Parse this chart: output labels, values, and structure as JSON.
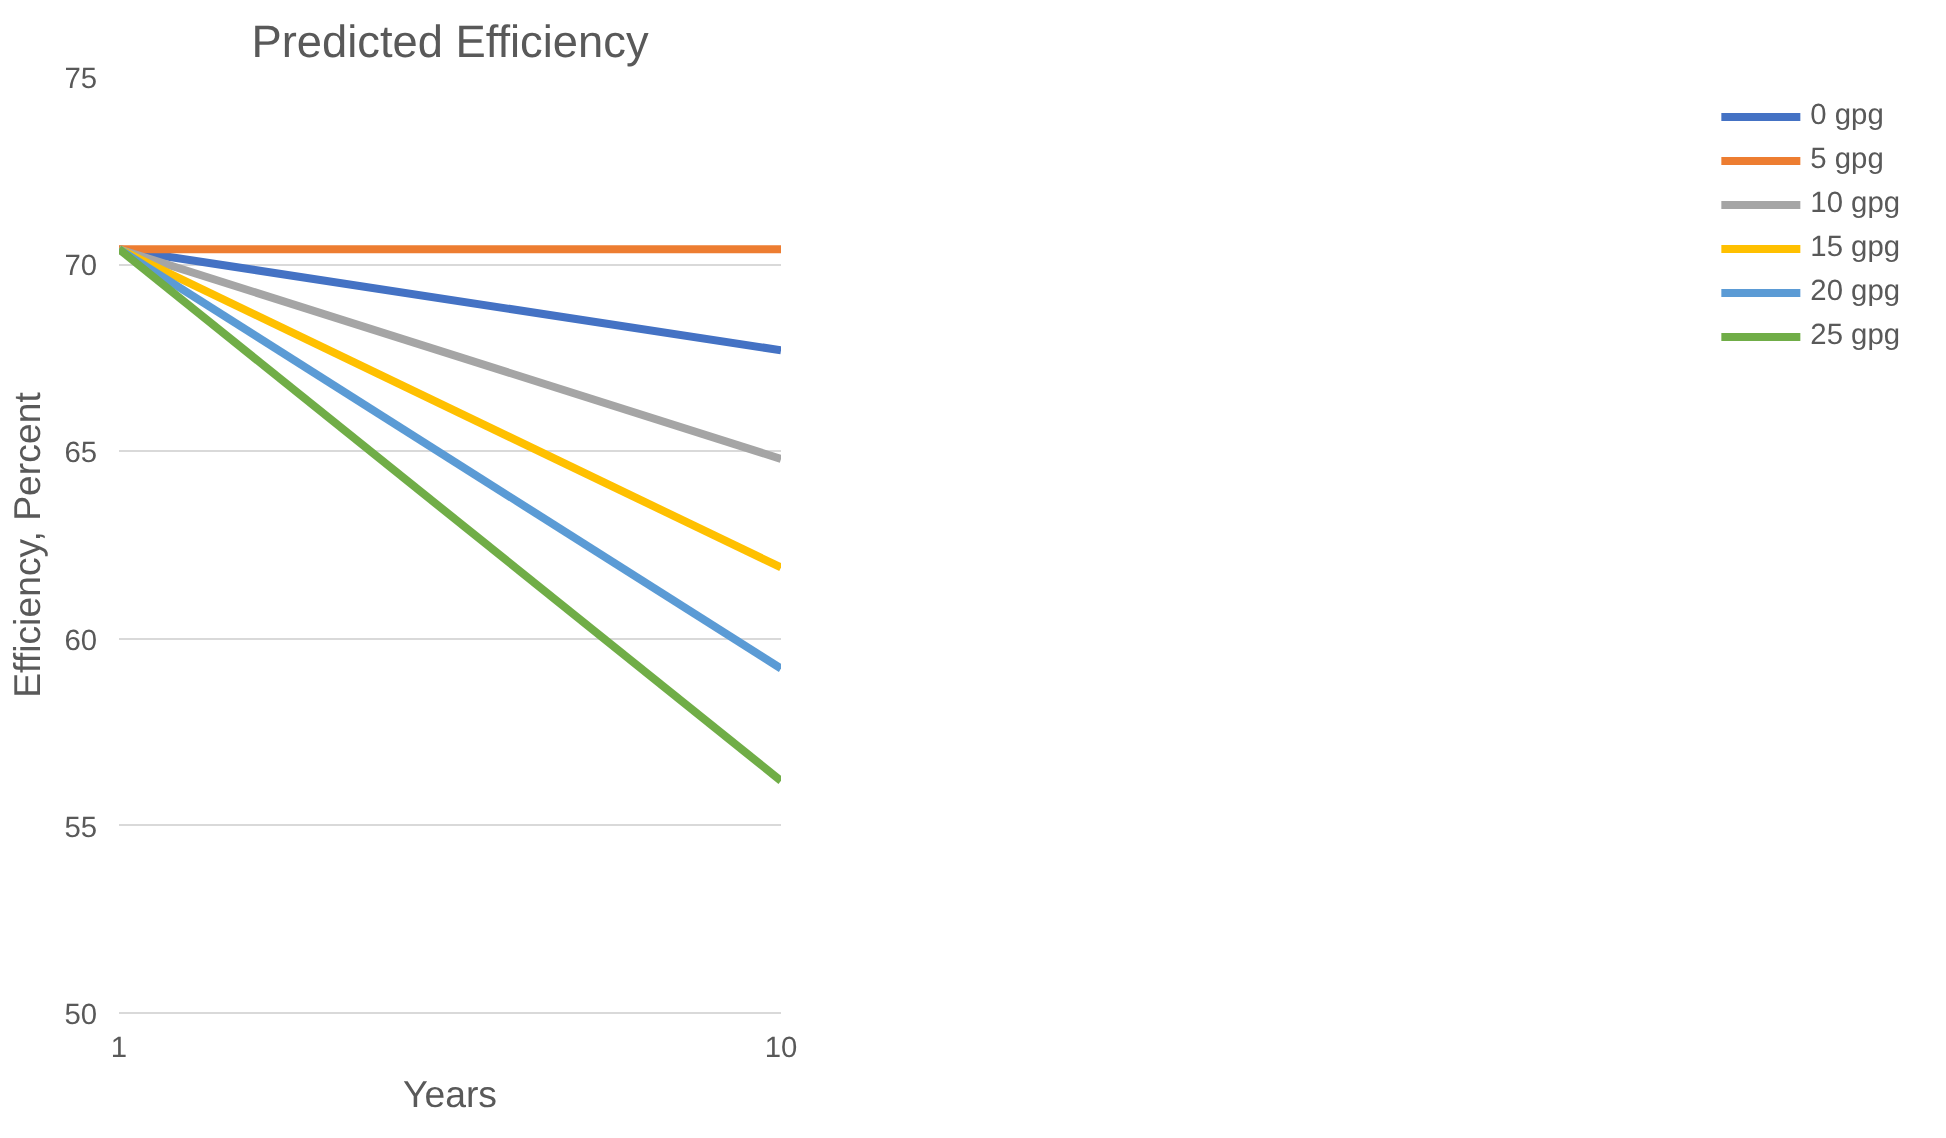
{
  "chart_data": {
    "type": "line",
    "title": "Predicted Efficiency",
    "xlabel": "Years",
    "ylabel": "Efficiency, Percent",
    "x": [
      1,
      10
    ],
    "xlim": [
      1,
      10
    ],
    "xticks": [
      1,
      10
    ],
    "ylim": [
      50,
      75
    ],
    "yticks": [
      50,
      55,
      60,
      65,
      70,
      75
    ],
    "grid": "y",
    "legend": "right",
    "marker": "none",
    "line_style": "solid",
    "series": [
      {
        "name": "0 gpg",
        "color": "#4472c4",
        "values": [
          70.4,
          67.7
        ]
      },
      {
        "name": "5 gpg",
        "color": "#ed7d31",
        "values": [
          70.4,
          70.4
        ]
      },
      {
        "name": "10 gpg",
        "color": "#a5a5a5",
        "values": [
          70.4,
          64.8
        ]
      },
      {
        "name": "15 gpg",
        "color": "#ffc000",
        "values": [
          70.4,
          61.9
        ]
      },
      {
        "name": "20 gpg",
        "color": "#5b9bd5",
        "values": [
          70.4,
          59.2
        ]
      },
      {
        "name": "25 gpg",
        "color": "#70ad47",
        "values": [
          70.4,
          56.2
        ]
      }
    ]
  }
}
